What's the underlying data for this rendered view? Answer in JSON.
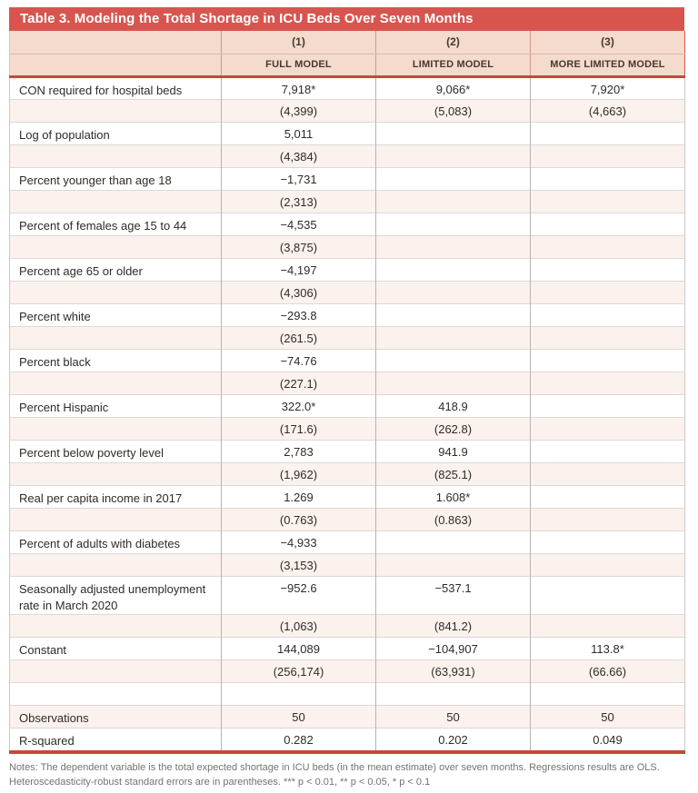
{
  "title": "Table 3. Modeling the Total Shortage in ICU Beds Over Seven Months",
  "columns": {
    "numbers": [
      "(1)",
      "(2)",
      "(3)"
    ],
    "names": [
      "FULL MODEL",
      "LIMITED MODEL",
      "MORE LIMITED MODEL"
    ]
  },
  "rows": [
    {
      "label": "CON required for hospital beds",
      "values": [
        "7,918*",
        "9,066*",
        "7,920*"
      ],
      "shade": "white"
    },
    {
      "label": "",
      "values": [
        "(4,399)",
        "(5,083)",
        "(4,663)"
      ],
      "shade": "pink"
    },
    {
      "label": "Log of population",
      "values": [
        "5,011",
        "",
        ""
      ],
      "shade": "white"
    },
    {
      "label": "",
      "values": [
        "(4,384)",
        "",
        ""
      ],
      "shade": "pink"
    },
    {
      "label": "Percent younger than age 18",
      "values": [
        "−1,731",
        "",
        ""
      ],
      "shade": "white"
    },
    {
      "label": "",
      "values": [
        "(2,313)",
        "",
        ""
      ],
      "shade": "pink"
    },
    {
      "label": "Percent of females age 15 to 44",
      "values": [
        "−4,535",
        "",
        ""
      ],
      "shade": "white"
    },
    {
      "label": "",
      "values": [
        "(3,875)",
        "",
        ""
      ],
      "shade": "pink"
    },
    {
      "label": "Percent age 65 or older",
      "values": [
        "−4,197",
        "",
        ""
      ],
      "shade": "white"
    },
    {
      "label": "",
      "values": [
        "(4,306)",
        "",
        ""
      ],
      "shade": "pink"
    },
    {
      "label": "Percent white",
      "values": [
        "−293.8",
        "",
        ""
      ],
      "shade": "white"
    },
    {
      "label": "",
      "values": [
        "(261.5)",
        "",
        ""
      ],
      "shade": "pink"
    },
    {
      "label": "Percent black",
      "values": [
        "−74.76",
        "",
        ""
      ],
      "shade": "white"
    },
    {
      "label": "",
      "values": [
        "(227.1)",
        "",
        ""
      ],
      "shade": "pink"
    },
    {
      "label": "Percent Hispanic",
      "values": [
        "322.0*",
        "418.9",
        ""
      ],
      "shade": "white"
    },
    {
      "label": "",
      "values": [
        "(171.6)",
        "(262.8)",
        ""
      ],
      "shade": "pink"
    },
    {
      "label": "Percent below poverty level",
      "values": [
        "2,783",
        "941.9",
        ""
      ],
      "shade": "white"
    },
    {
      "label": "",
      "values": [
        "(1,962)",
        "(825.1)",
        ""
      ],
      "shade": "pink"
    },
    {
      "label": "Real per capita income in 2017",
      "values": [
        "1.269",
        "1.608*",
        ""
      ],
      "shade": "white"
    },
    {
      "label": "",
      "values": [
        "(0.763)",
        "(0.863)",
        ""
      ],
      "shade": "pink"
    },
    {
      "label": "Percent of adults with diabetes",
      "values": [
        "−4,933",
        "",
        ""
      ],
      "shade": "white"
    },
    {
      "label": "",
      "values": [
        "(3,153)",
        "",
        ""
      ],
      "shade": "pink"
    },
    {
      "label": "Seasonally adjusted unemployment rate in March 2020",
      "values": [
        "−952.6",
        "−537.1",
        ""
      ],
      "shade": "white"
    },
    {
      "label": "",
      "values": [
        "(1,063)",
        "(841.2)",
        ""
      ],
      "shade": "pink"
    },
    {
      "label": "Constant",
      "values": [
        "144,089",
        "−104,907",
        "113.8*"
      ],
      "shade": "white"
    },
    {
      "label": "",
      "values": [
        "(256,174)",
        "(63,931)",
        "(66.66)"
      ],
      "shade": "pink"
    },
    {
      "label": "",
      "values": [
        "",
        "",
        ""
      ],
      "shade": "white"
    },
    {
      "label": "Observations",
      "values": [
        "50",
        "50",
        "50"
      ],
      "shade": "pink"
    },
    {
      "label": "R-squared",
      "values": [
        "0.282",
        "0.202",
        "0.049"
      ],
      "shade": "white"
    }
  ],
  "notes": "Notes: The dependent variable is the total expected shortage in ICU beds (in the mean estimate) over seven months. Regressions results are OLS. Heteroscedasticity-robust standard errors are in parentheses. *** p < 0.01, ** p < 0.05, * p < 0.1",
  "colors": {
    "title_bar": "#d8554f",
    "header_bg": "#f4dbce",
    "row_pink": "#fbf1ed",
    "accent_rule": "#c8473b"
  }
}
